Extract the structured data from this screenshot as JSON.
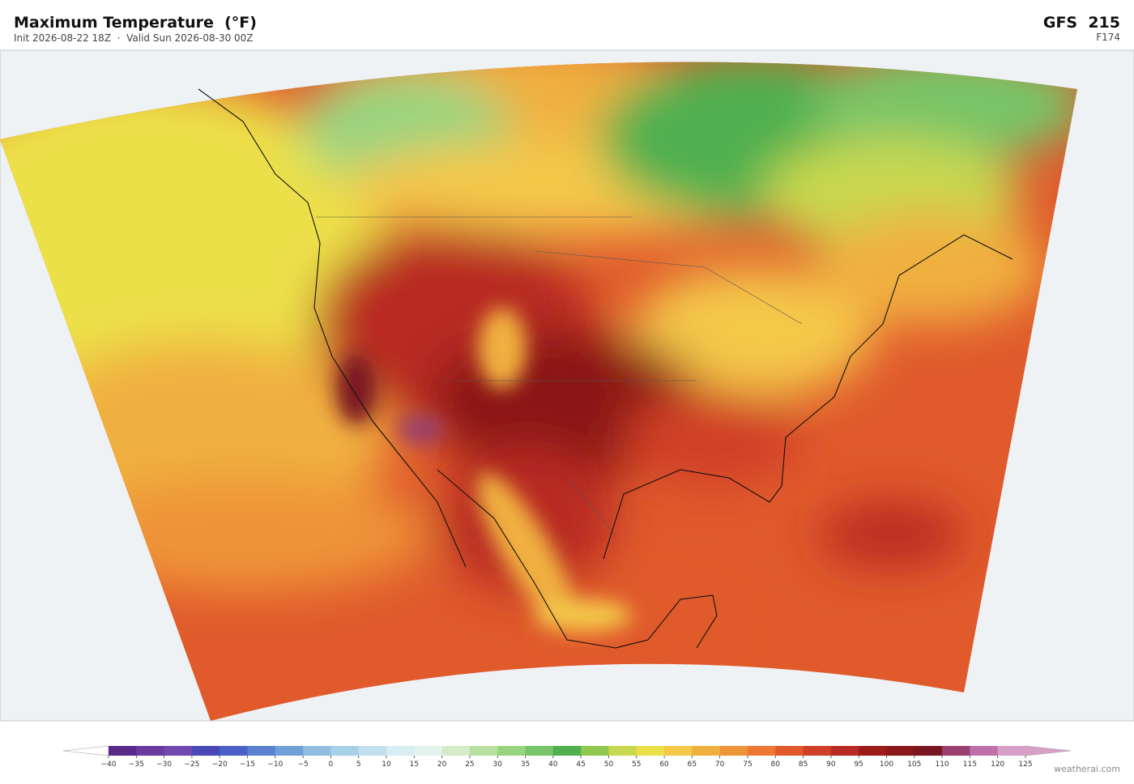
{
  "header": {
    "title": "Maximum Temperature  (°F)",
    "subtitle": "Init 2026-08-22 18Z  ·  Valid Sun 2026-08-30 00Z",
    "model": "GFS  215",
    "forecast_hour": "F174"
  },
  "colorbar": {
    "ticks": [
      {
        "value": -40,
        "label": "−40"
      },
      {
        "value": -35,
        "label": "−35"
      },
      {
        "value": -30,
        "label": "−30"
      },
      {
        "value": -25,
        "label": "−25"
      },
      {
        "value": -20,
        "label": "−20"
      },
      {
        "value": -15,
        "label": "−15"
      },
      {
        "value": -10,
        "label": "−10"
      },
      {
        "value": -5,
        "label": "−5"
      },
      0,
      5,
      10,
      15,
      20,
      25,
      30,
      35,
      40,
      45,
      50,
      55,
      60,
      65,
      70,
      75,
      80,
      85,
      90,
      95,
      100,
      105,
      110,
      115,
      120,
      125
    ],
    "colors": [
      "#5a2a8a",
      "#6a3a9e",
      "#7048b0",
      "#4a48b8",
      "#4a60c8",
      "#5a80d0",
      "#70a0d8",
      "#90bce0",
      "#a8d0e8",
      "#c0e0ee",
      "#d8eef2",
      "#e4f2ec",
      "#d4ecc8",
      "#b8e0a0",
      "#98d480",
      "#78c468",
      "#50b050",
      "#90c850",
      "#c8d850",
      "#ece048",
      "#f4c848",
      "#f0b040",
      "#ee9438",
      "#ec7834",
      "#e05a2c",
      "#d04028",
      "#b82a24",
      "#9c1c1c",
      "#8a1818",
      "#7a1620",
      "#9a4070",
      "#c070a8",
      "#d8a0c8"
    ]
  },
  "footer": {
    "credit": "weatherai.com"
  }
}
